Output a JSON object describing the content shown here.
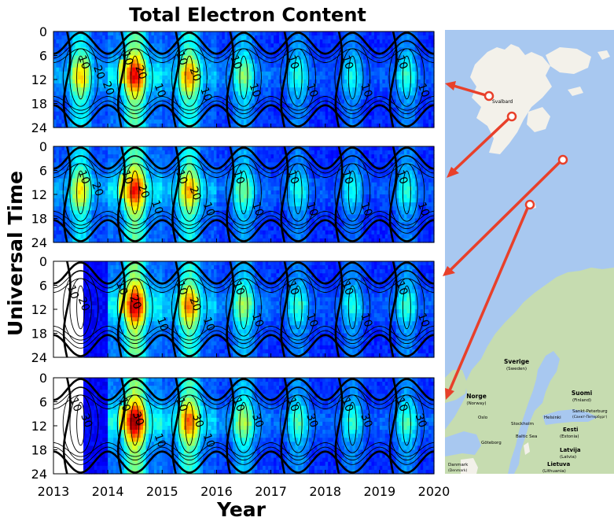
{
  "chart_data": {
    "type": "heatmap",
    "title": "Total Electron Content",
    "xlabel": "Year",
    "ylabel": "Universal Time",
    "xlim": [
      2013,
      2020
    ],
    "ylim": [
      0,
      24
    ],
    "y_inverted": true,
    "x_ticks": [
      "2013",
      "2014",
      "2015",
      "2016",
      "2017",
      "2018",
      "2019",
      "2020"
    ],
    "y_ticks": [
      "0",
      "6",
      "12",
      "18",
      "24"
    ],
    "colormap": "jet",
    "contour_color": "#000000",
    "panels": [
      {
        "data_start": 2013.0,
        "peak_intensity": [
          0.55,
          0.78,
          0.62,
          0.4,
          0.3,
          0.27,
          0.3
        ],
        "contour_labels": [
          {
            "text": "10",
            "x": 2013.5,
            "y": 8
          },
          {
            "text": "20",
            "x": 2013.78,
            "y": 10.5
          },
          {
            "text": "20",
            "x": 2013.95,
            "y": 14.5
          },
          {
            "text": "10",
            "x": 2014.3,
            "y": 7
          },
          {
            "text": "20",
            "x": 2014.55,
            "y": 10.5
          },
          {
            "text": "10",
            "x": 2014.9,
            "y": 15
          },
          {
            "text": "10",
            "x": 2015.3,
            "y": 7
          },
          {
            "text": "20",
            "x": 2015.55,
            "y": 11
          },
          {
            "text": "10",
            "x": 2015.75,
            "y": 16
          },
          {
            "text": "10",
            "x": 2016.3,
            "y": 8
          },
          {
            "text": "10",
            "x": 2016.65,
            "y": 15
          },
          {
            "text": "10",
            "x": 2017.35,
            "y": 8
          },
          {
            "text": "10",
            "x": 2017.7,
            "y": 15
          },
          {
            "text": "10",
            "x": 2018.35,
            "y": 8
          },
          {
            "text": "10",
            "x": 2018.7,
            "y": 15
          },
          {
            "text": "10",
            "x": 2019.35,
            "y": 8
          },
          {
            "text": "10",
            "x": 2019.75,
            "y": 15
          }
        ]
      },
      {
        "data_start": 2013.0,
        "peak_intensity": [
          0.52,
          0.76,
          0.6,
          0.38,
          0.28,
          0.26,
          0.29
        ],
        "contour_labels": [
          {
            "text": "10",
            "x": 2013.5,
            "y": 8
          },
          {
            "text": "20",
            "x": 2013.75,
            "y": 11
          },
          {
            "text": "10",
            "x": 2014.3,
            "y": 8
          },
          {
            "text": "20",
            "x": 2014.6,
            "y": 11.5
          },
          {
            "text": "10",
            "x": 2014.85,
            "y": 15.5
          },
          {
            "text": "10",
            "x": 2015.3,
            "y": 8
          },
          {
            "text": "20",
            "x": 2015.55,
            "y": 12
          },
          {
            "text": "10",
            "x": 2015.8,
            "y": 16
          },
          {
            "text": "10",
            "x": 2016.35,
            "y": 8
          },
          {
            "text": "10",
            "x": 2016.7,
            "y": 16
          },
          {
            "text": "10",
            "x": 2017.35,
            "y": 8
          },
          {
            "text": "10",
            "x": 2017.7,
            "y": 16
          },
          {
            "text": "10",
            "x": 2018.35,
            "y": 8
          },
          {
            "text": "10",
            "x": 2018.7,
            "y": 16
          },
          {
            "text": "10",
            "x": 2019.35,
            "y": 8
          },
          {
            "text": "10",
            "x": 2019.75,
            "y": 16
          }
        ]
      },
      {
        "data_start": 2013.55,
        "peak_intensity": [
          0.0,
          0.82,
          0.64,
          0.42,
          0.31,
          0.28,
          0.31
        ],
        "contour_labels": [
          {
            "text": "10",
            "x": 2013.3,
            "y": 8
          },
          {
            "text": "20",
            "x": 2013.5,
            "y": 11
          },
          {
            "text": "10",
            "x": 2014.2,
            "y": 7
          },
          {
            "text": "20",
            "x": 2014.45,
            "y": 10.5
          },
          {
            "text": "10",
            "x": 2014.95,
            "y": 16
          },
          {
            "text": "10",
            "x": 2015.3,
            "y": 7
          },
          {
            "text": "20",
            "x": 2015.55,
            "y": 11
          },
          {
            "text": "10",
            "x": 2015.8,
            "y": 16
          },
          {
            "text": "10",
            "x": 2016.35,
            "y": 7
          },
          {
            "text": "10",
            "x": 2016.7,
            "y": 15
          },
          {
            "text": "10",
            "x": 2017.35,
            "y": 7
          },
          {
            "text": "10",
            "x": 2017.7,
            "y": 15
          },
          {
            "text": "10",
            "x": 2018.35,
            "y": 7
          },
          {
            "text": "10",
            "x": 2018.7,
            "y": 15
          },
          {
            "text": "10",
            "x": 2019.35,
            "y": 7
          },
          {
            "text": "10",
            "x": 2019.75,
            "y": 15
          }
        ]
      },
      {
        "data_start": 2013.55,
        "peak_intensity": [
          0.0,
          0.86,
          0.68,
          0.44,
          0.33,
          0.3,
          0.33
        ],
        "contour_labels": [
          {
            "text": "10",
            "x": 2013.35,
            "y": 7
          },
          {
            "text": "30",
            "x": 2013.55,
            "y": 11
          },
          {
            "text": "10",
            "x": 2014.25,
            "y": 7
          },
          {
            "text": "30",
            "x": 2014.5,
            "y": 10.5
          },
          {
            "text": "10",
            "x": 2014.9,
            "y": 16
          },
          {
            "text": "10",
            "x": 2015.3,
            "y": 7
          },
          {
            "text": "30",
            "x": 2015.6,
            "y": 11
          },
          {
            "text": "10",
            "x": 2015.8,
            "y": 16
          },
          {
            "text": "10",
            "x": 2016.35,
            "y": 7
          },
          {
            "text": "30",
            "x": 2016.7,
            "y": 11
          },
          {
            "text": "10",
            "x": 2017.35,
            "y": 7
          },
          {
            "text": "30",
            "x": 2017.7,
            "y": 11
          },
          {
            "text": "10",
            "x": 2018.35,
            "y": 7
          },
          {
            "text": "30",
            "x": 2018.7,
            "y": 11
          },
          {
            "text": "10",
            "x": 2019.35,
            "y": 7
          },
          {
            "text": "30",
            "x": 2019.7,
            "y": 11
          }
        ]
      }
    ]
  },
  "map": {
    "water_color": "#a8c8f0",
    "land_color": "#f3f1ea",
    "forest_color": "#c6dcb0",
    "arrow_color": "#e8402a",
    "labels": {
      "svalbard": "Svalbard",
      "norge": "Norge",
      "norge_en": "(Norway)",
      "sverige": "Sverige",
      "sverige_en": "(Sweden)",
      "suomi": "Suomi",
      "suomi_en": "(Finland)",
      "oslo": "Oslo",
      "stockholm": "Stockholm",
      "helsinki": "Helsinki",
      "spb": "Sankt-Peterburg",
      "spb_en": "(Санкт-Петербург)",
      "goteborg": "Göteborg",
      "baltic": "Baltic Sea",
      "eesti": "Eesti",
      "eesti_en": "(Estonia)",
      "latvija": "Latvija",
      "latvija_en": "(Latvia)",
      "lietuva": "Lietuva",
      "lietuva_en": "(Lithuania)",
      "danmark": "Danmark",
      "danmark_en": "(Denmark)"
    }
  }
}
